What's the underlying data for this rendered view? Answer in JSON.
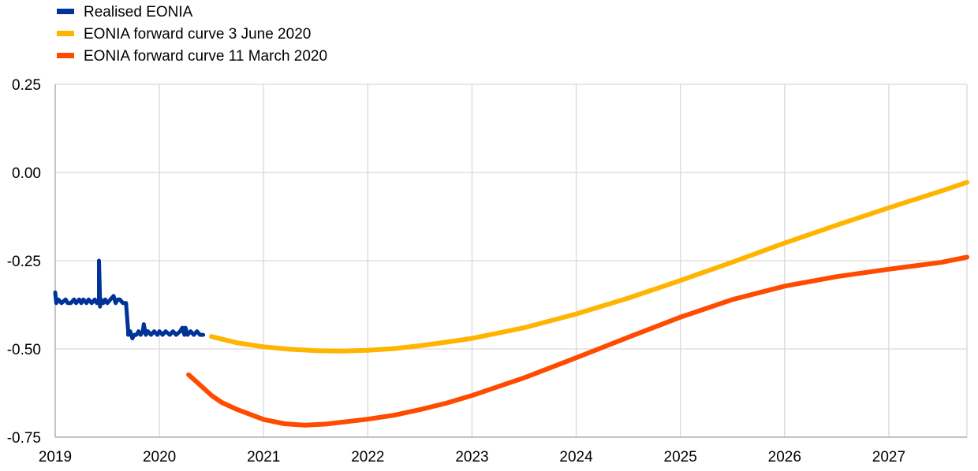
{
  "chart_data": {
    "type": "line",
    "title": "",
    "xlabel": "",
    "ylabel": "",
    "xlim": [
      2019,
      2027.75
    ],
    "ylim": [
      -0.75,
      0.25
    ],
    "x_ticks": [
      "2019",
      "2020",
      "2021",
      "2022",
      "2023",
      "2024",
      "2025",
      "2026",
      "2027"
    ],
    "y_ticks": [
      "0.25",
      "0.00",
      "-0.25",
      "-0.50",
      "-0.75"
    ],
    "grid": true,
    "legend_position": "top-left",
    "series": [
      {
        "name": "Realised EONIA",
        "color": "#003299",
        "x": [
          2019.0,
          2019.01,
          2019.03,
          2019.06,
          2019.1,
          2019.12,
          2019.15,
          2019.18,
          2019.2,
          2019.23,
          2019.25,
          2019.27,
          2019.3,
          2019.32,
          2019.35,
          2019.38,
          2019.4,
          2019.42,
          2019.42,
          2019.43,
          2019.43,
          2019.44,
          2019.46,
          2019.48,
          2019.5,
          2019.53,
          2019.56,
          2019.58,
          2019.6,
          2019.62,
          2019.65,
          2019.68,
          2019.7,
          2019.7,
          2019.72,
          2019.74,
          2019.76,
          2019.78,
          2019.8,
          2019.82,
          2019.84,
          2019.85,
          2019.87,
          2019.89,
          2019.92,
          2019.95,
          2019.98,
          2020.0,
          2020.03,
          2020.06,
          2020.1,
          2020.13,
          2020.16,
          2020.2,
          2020.22,
          2020.24,
          2020.25,
          2020.27,
          2020.3,
          2020.33,
          2020.36,
          2020.39,
          2020.42
        ],
        "values": [
          -0.34,
          -0.37,
          -0.36,
          -0.37,
          -0.36,
          -0.37,
          -0.37,
          -0.36,
          -0.37,
          -0.36,
          -0.37,
          -0.36,
          -0.37,
          -0.36,
          -0.37,
          -0.36,
          -0.37,
          -0.37,
          -0.25,
          -0.36,
          -0.38,
          -0.36,
          -0.37,
          -0.36,
          -0.37,
          -0.36,
          -0.35,
          -0.37,
          -0.36,
          -0.36,
          -0.37,
          -0.37,
          -0.45,
          -0.46,
          -0.45,
          -0.47,
          -0.46,
          -0.46,
          -0.45,
          -0.46,
          -0.45,
          -0.43,
          -0.46,
          -0.45,
          -0.46,
          -0.45,
          -0.46,
          -0.45,
          -0.46,
          -0.45,
          -0.46,
          -0.45,
          -0.46,
          -0.45,
          -0.44,
          -0.46,
          -0.44,
          -0.46,
          -0.45,
          -0.46,
          -0.45,
          -0.46,
          -0.46
        ]
      },
      {
        "name": "EONIA forward curve 3 June 2020",
        "color": "#FFB400",
        "x": [
          2020.5,
          2020.75,
          2021.0,
          2021.25,
          2021.5,
          2021.75,
          2022.0,
          2022.25,
          2022.5,
          2022.75,
          2023.0,
          2023.5,
          2024.0,
          2024.5,
          2025.0,
          2025.5,
          2026.0,
          2026.5,
          2027.0,
          2027.5,
          2027.75
        ],
        "values": [
          -0.465,
          -0.483,
          -0.494,
          -0.501,
          -0.505,
          -0.506,
          -0.504,
          -0.499,
          -0.491,
          -0.481,
          -0.47,
          -0.44,
          -0.401,
          -0.356,
          -0.306,
          -0.254,
          -0.2,
          -0.149,
          -0.1,
          -0.053,
          -0.028
        ]
      },
      {
        "name": "EONIA forward curve 11 March 2020",
        "color": "#FF4B00",
        "x": [
          2020.28,
          2020.4,
          2020.5,
          2020.6,
          2020.75,
          2021.0,
          2021.2,
          2021.4,
          2021.6,
          2021.8,
          2022.0,
          2022.25,
          2022.5,
          2022.75,
          2023.0,
          2023.5,
          2024.0,
          2024.5,
          2025.0,
          2025.5,
          2026.0,
          2026.5,
          2027.0,
          2027.5,
          2027.75
        ],
        "values": [
          -0.573,
          -0.605,
          -0.632,
          -0.652,
          -0.672,
          -0.7,
          -0.712,
          -0.716,
          -0.713,
          -0.706,
          -0.699,
          -0.688,
          -0.672,
          -0.654,
          -0.632,
          -0.582,
          -0.525,
          -0.467,
          -0.41,
          -0.36,
          -0.322,
          -0.295,
          -0.274,
          -0.255,
          -0.24
        ]
      }
    ]
  }
}
